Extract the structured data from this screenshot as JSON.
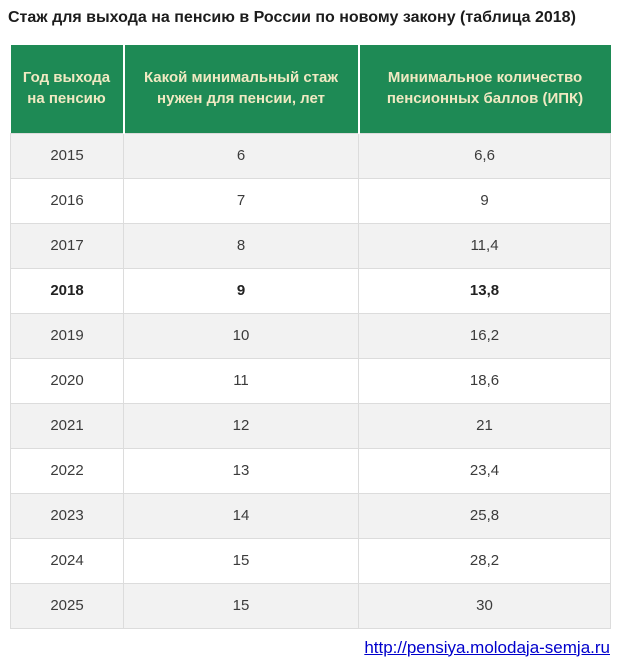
{
  "title": "Стаж для выхода на пенсию в России по новому закону (таблица 2018)",
  "table": {
    "columns": [
      "Год выхода на пенсию",
      "Какой минимальный стаж нужен для пенсии, лет",
      "Минимальное количество пенсионных баллов (ИПК)"
    ],
    "rows": [
      {
        "year": "2015",
        "experience": "6",
        "points": "6,6",
        "bold": false
      },
      {
        "year": "2016",
        "experience": "7",
        "points": "9",
        "bold": false
      },
      {
        "year": "2017",
        "experience": "8",
        "points": "11,4",
        "bold": false
      },
      {
        "year": "2018",
        "experience": "9",
        "points": "13,8",
        "bold": true
      },
      {
        "year": "2019",
        "experience": "10",
        "points": "16,2",
        "bold": false
      },
      {
        "year": "2020",
        "experience": "11",
        "points": "18,6",
        "bold": false
      },
      {
        "year": "2021",
        "experience": "12",
        "points": "21",
        "bold": false
      },
      {
        "year": "2022",
        "experience": "13",
        "points": "23,4",
        "bold": false
      },
      {
        "year": "2023",
        "experience": "14",
        "points": "25,8",
        "bold": false
      },
      {
        "year": "2024",
        "experience": "15",
        "points": "28,2",
        "bold": false
      },
      {
        "year": "2025",
        "experience": "15",
        "points": "30",
        "bold": false
      }
    ]
  },
  "footer": {
    "link": "http://pensiya.molodaja-semja.ru"
  },
  "colors": {
    "header_bg": "#1e8a55",
    "header_text": "#f0e9c2",
    "row_alt_bg": "#f2f2f2",
    "row_bg": "#ffffff",
    "border": "#dcdcdc",
    "link": "#0000cc",
    "title_text": "#1c1c1c",
    "cell_text": "#3b3b3b"
  },
  "chart_data": {
    "type": "table",
    "title": "Стаж для выхода на пенсию в России по новому закону (таблица 2018)",
    "columns": [
      "Год выхода на пенсию",
      "Какой минимальный стаж нужен для пенсии, лет",
      "Минимальное количество пенсионных баллов (ИПК)"
    ],
    "categories": [
      2015,
      2016,
      2017,
      2018,
      2019,
      2020,
      2021,
      2022,
      2023,
      2024,
      2025
    ],
    "series": [
      {
        "name": "Какой минимальный стаж нужен для пенсии, лет",
        "values": [
          6,
          7,
          8,
          9,
          10,
          11,
          12,
          13,
          14,
          15,
          15
        ]
      },
      {
        "name": "Минимальное количество пенсионных баллов (ИПК)",
        "values": [
          6.6,
          9,
          11.4,
          13.8,
          16.2,
          18.6,
          21,
          23.4,
          25.8,
          28.2,
          30
        ]
      }
    ],
    "highlighted_row": 2018,
    "source": "http://pensiya.molodaja-semja.ru"
  }
}
